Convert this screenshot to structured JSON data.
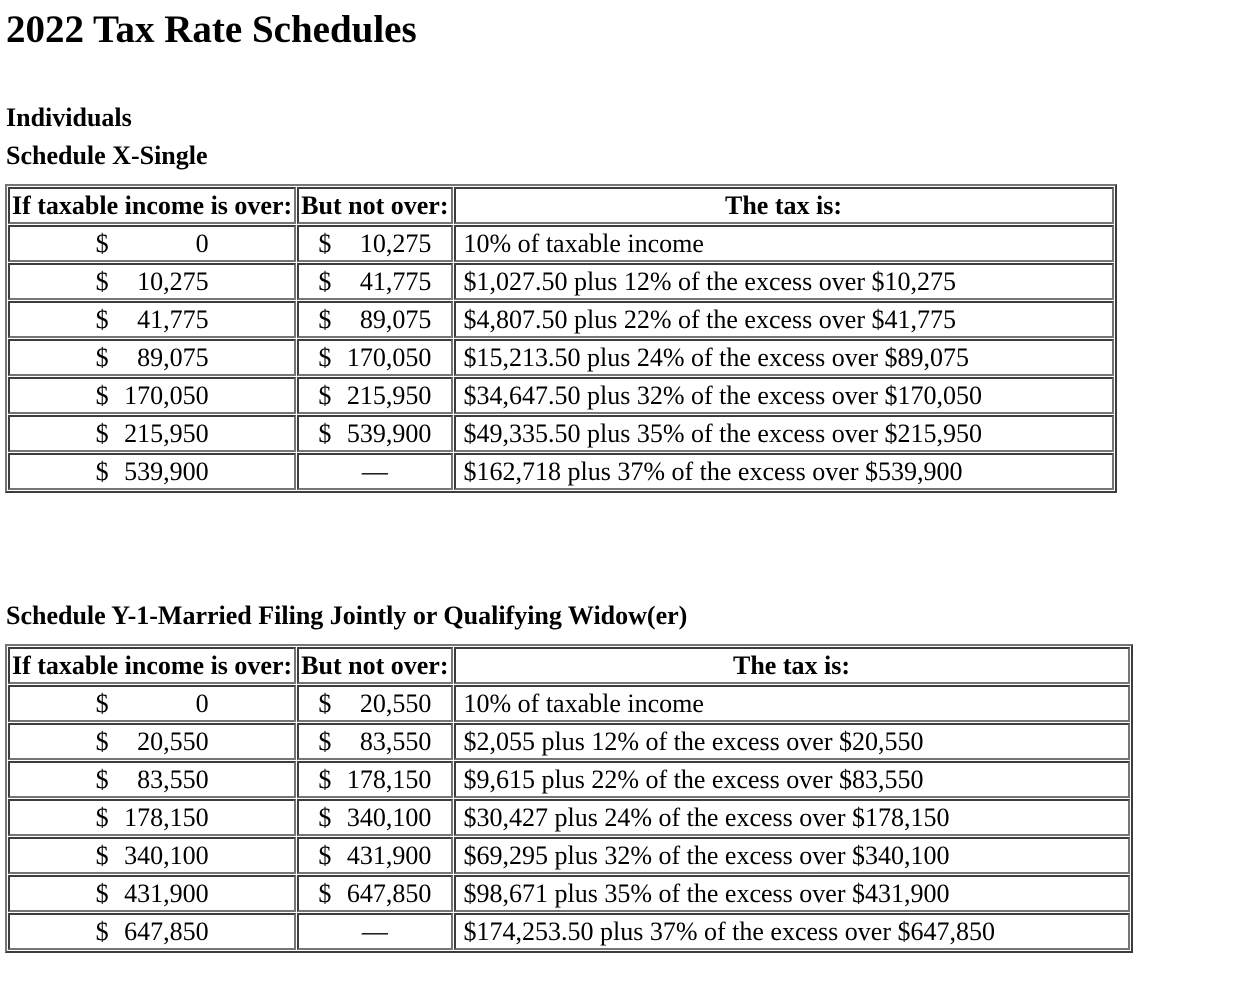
{
  "document": {
    "title": "2022 Tax Rate Schedules",
    "currency_symbol": "$",
    "no_upper_limit": "—"
  },
  "table_headers": {
    "income_over": "If taxable income is over:",
    "but_not_over": "But not over:",
    "tax_is": "The tax is:"
  },
  "schedule_x": {
    "heading_line1": "Individuals",
    "heading_line2": "Schedule X-Single",
    "rows": [
      {
        "over": "0",
        "not_over": "10,275",
        "tax": "10% of taxable income"
      },
      {
        "over": "10,275",
        "not_over": "41,775",
        "tax": "$1,027.50 plus 12% of the excess over $10,275"
      },
      {
        "over": "41,775",
        "not_over": "89,075",
        "tax": "$4,807.50 plus 22% of the excess over $41,775"
      },
      {
        "over": "89,075",
        "not_over": "170,050",
        "tax": "$15,213.50 plus 24% of the excess over $89,075"
      },
      {
        "over": "170,050",
        "not_over": "215,950",
        "tax": "$34,647.50 plus 32% of the excess over $170,050"
      },
      {
        "over": "215,950",
        "not_over": "539,900",
        "tax": "$49,335.50 plus 35% of the excess over $215,950"
      },
      {
        "over": "539,900",
        "not_over": "",
        "tax": "$162,718 plus 37% of the excess over $539,900"
      }
    ]
  },
  "schedule_y1": {
    "heading": "Schedule Y-1-Married Filing Jointly or Qualifying Widow(er)",
    "rows": [
      {
        "over": "0",
        "not_over": "20,550",
        "tax": "10% of taxable income"
      },
      {
        "over": "20,550",
        "not_over": "83,550",
        "tax": "$2,055 plus 12% of the excess over $20,550"
      },
      {
        "over": "83,550",
        "not_over": "178,150",
        "tax": "$9,615 plus 22% of the excess over $83,550"
      },
      {
        "over": "178,150",
        "not_over": "340,100",
        "tax": "$30,427 plus 24% of the excess over $178,150"
      },
      {
        "over": "340,100",
        "not_over": "431,900",
        "tax": "$69,295 plus 32% of the excess over $340,100"
      },
      {
        "over": "431,900",
        "not_over": "647,850",
        "tax": "$98,671 plus 35% of the excess over $431,900"
      },
      {
        "over": "647,850",
        "not_over": "",
        "tax": "$174,253.50 plus 37% of the excess over $647,850"
      }
    ]
  }
}
